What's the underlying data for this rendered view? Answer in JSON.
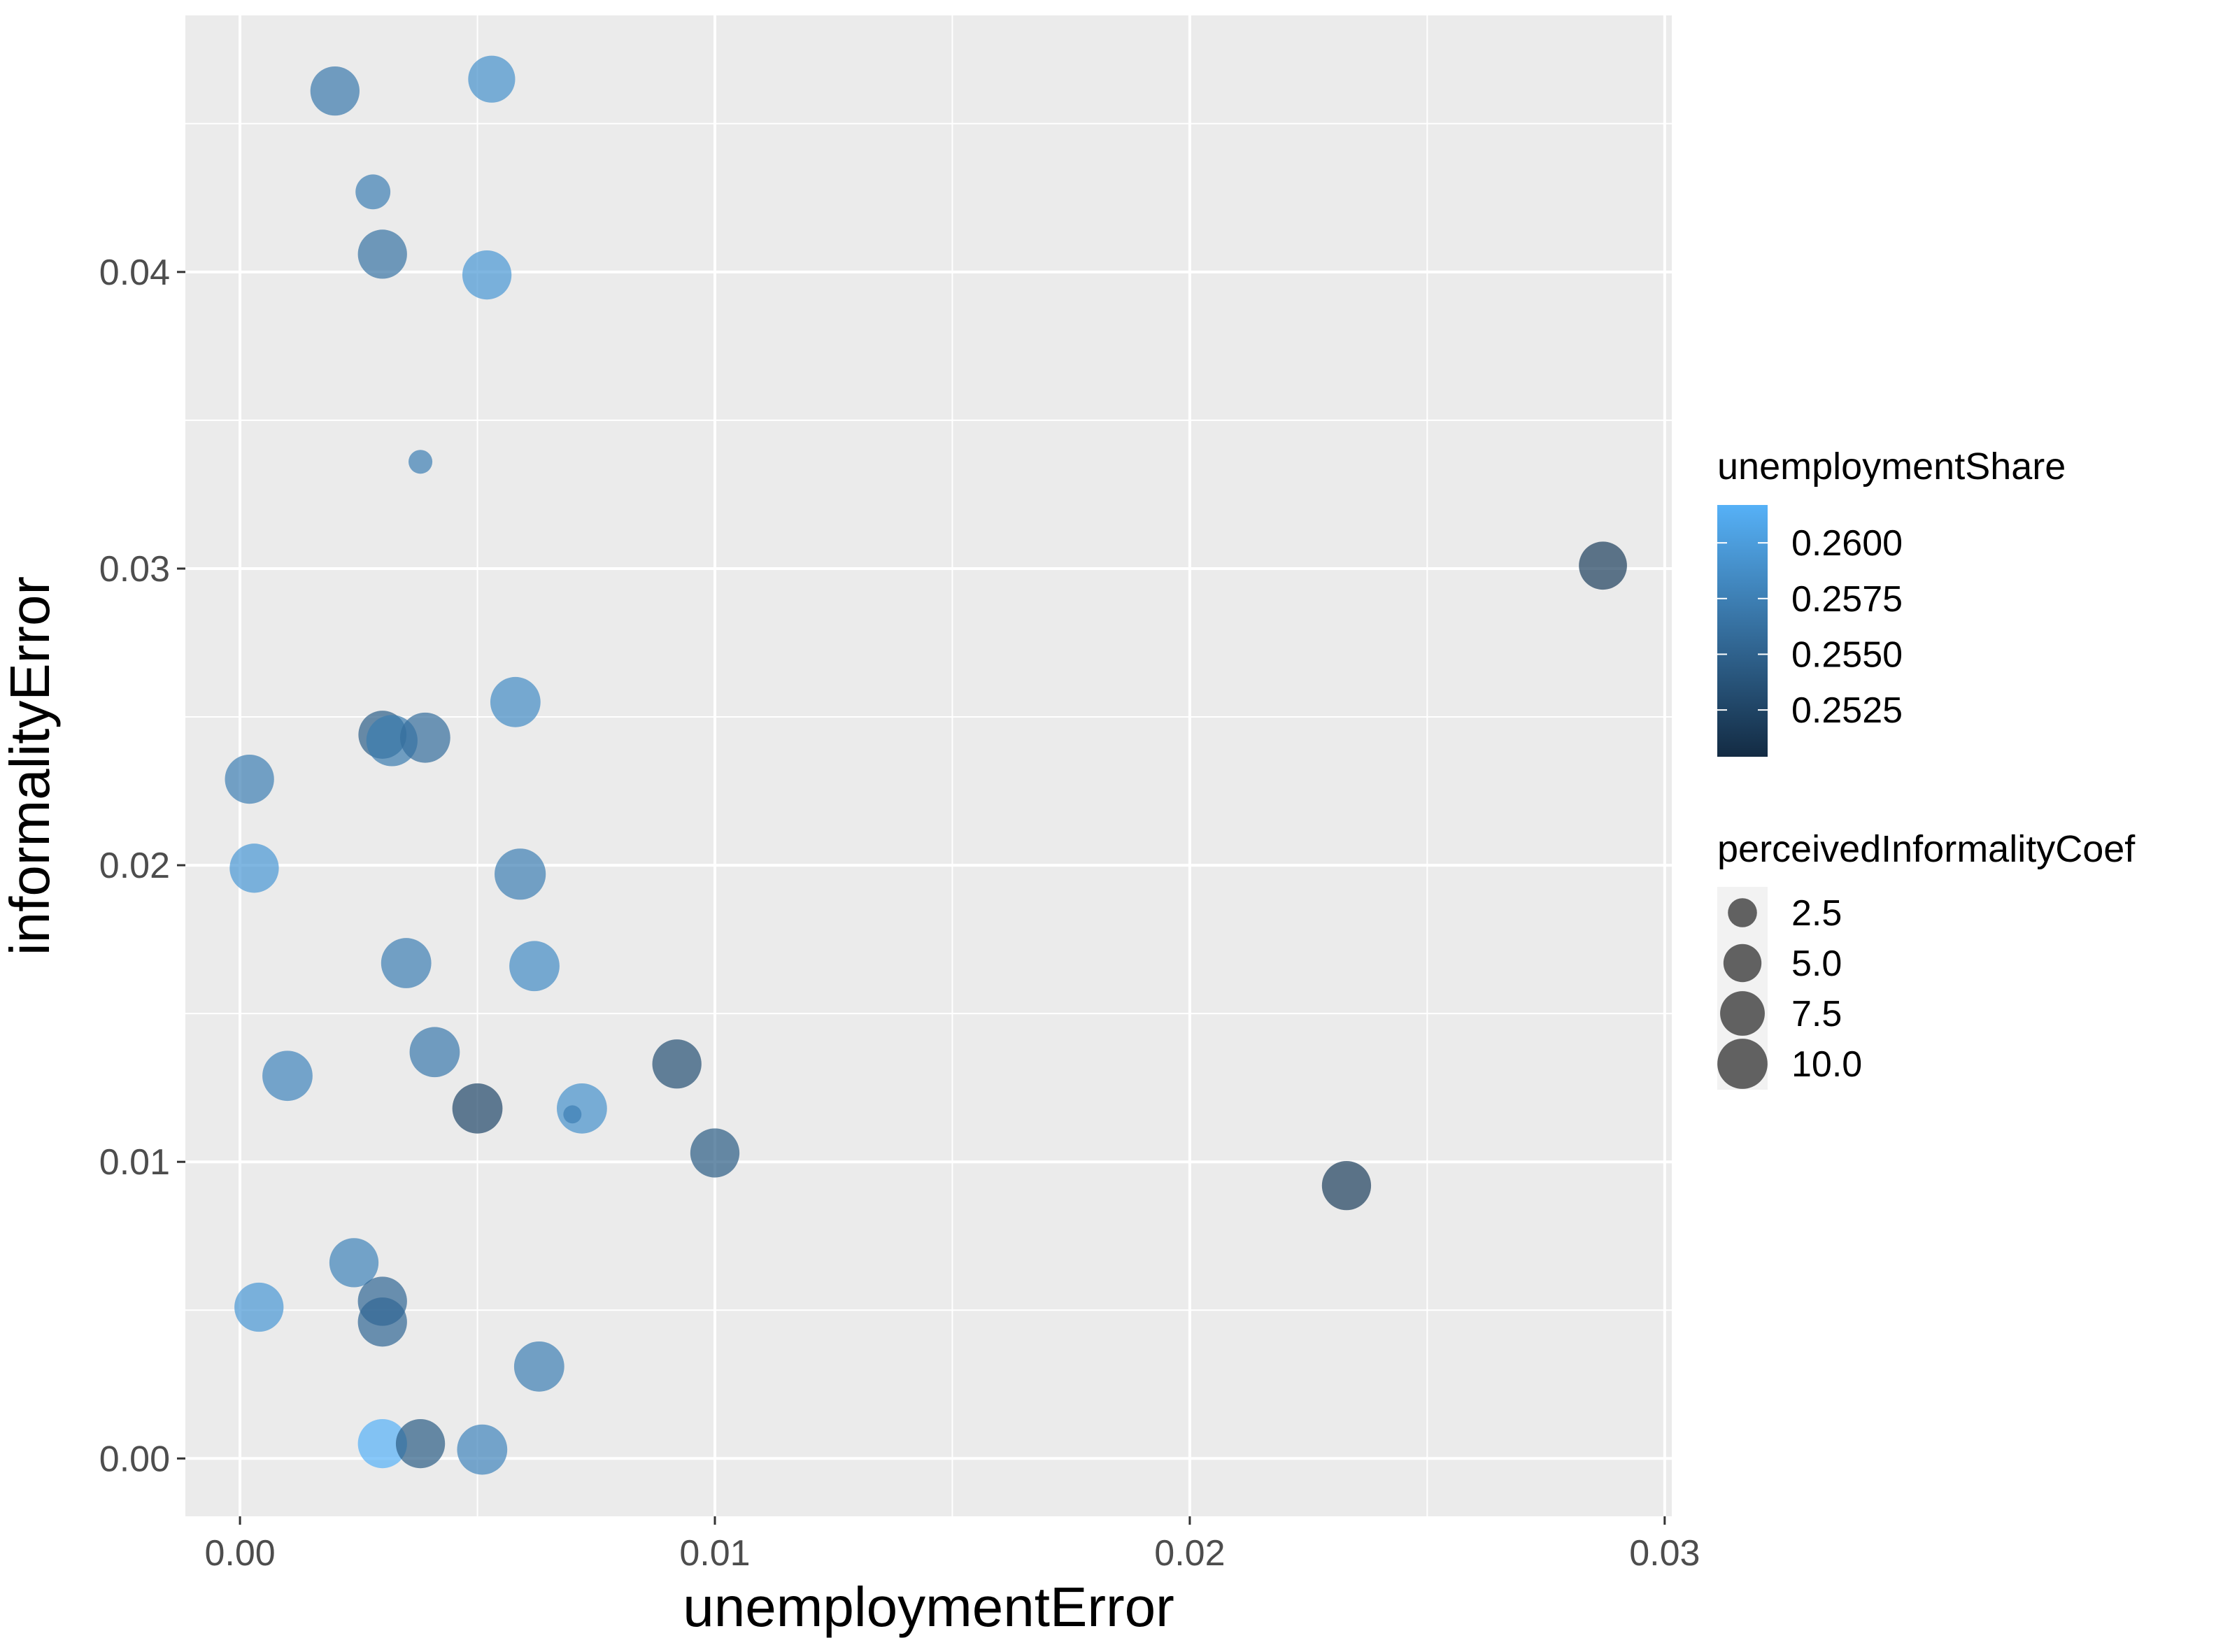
{
  "chart_data": {
    "type": "scatter",
    "xlabel": "unemploymentError",
    "ylabel": "informalityError",
    "xlim": [
      -0.00115,
      0.03015
    ],
    "ylim": [
      -0.00195,
      0.04865
    ],
    "x_ticks": [
      0.0,
      0.01,
      0.02,
      0.03
    ],
    "x_tick_labels": [
      "0.00",
      "0.01",
      "0.02",
      "0.03"
    ],
    "y_ticks": [
      0.0,
      0.01,
      0.02,
      0.03,
      0.04
    ],
    "y_tick_labels": [
      "0.00",
      "0.01",
      "0.02",
      "0.03",
      "0.04"
    ],
    "grid": true,
    "background": "#EBEBEB",
    "point_alpha": 0.7,
    "color_legend": {
      "title": "unemploymentShare",
      "ticks": [
        0.2525,
        0.255,
        0.2575,
        0.26
      ],
      "tick_labels": [
        "0.2525",
        "0.2550",
        "0.2575",
        "0.2600"
      ],
      "range": [
        0.2504,
        0.2617
      ],
      "low_color": "#132B43",
      "high_color": "#56B1F7"
    },
    "size_legend": {
      "title": "perceivedInformalityCoef",
      "values": [
        2.5,
        5.0,
        7.5,
        10.0
      ],
      "labels": [
        "2.5",
        "5.0",
        "7.5",
        "10.0"
      ],
      "range": [
        0.5,
        11.5
      ],
      "color": "#000000"
    },
    "points": [
      {
        "x": 0.002,
        "y": 0.0461,
        "share": 0.257,
        "size": 9.5
      },
      {
        "x": 0.0053,
        "y": 0.0465,
        "share": 0.259,
        "size": 8.5
      },
      {
        "x": 0.0028,
        "y": 0.0427,
        "share": 0.2575,
        "size": 4.0
      },
      {
        "x": 0.003,
        "y": 0.0406,
        "share": 0.2565,
        "size": 9.5
      },
      {
        "x": 0.0052,
        "y": 0.0399,
        "share": 0.2595,
        "size": 9.5
      },
      {
        "x": 0.0038,
        "y": 0.0336,
        "share": 0.2575,
        "size": 1.5
      },
      {
        "x": 0.0287,
        "y": 0.0301,
        "share": 0.252,
        "size": 9.0
      },
      {
        "x": 0.0058,
        "y": 0.0255,
        "share": 0.2585,
        "size": 10.0
      },
      {
        "x": 0.003,
        "y": 0.0244,
        "share": 0.2548,
        "size": 9.0
      },
      {
        "x": 0.0032,
        "y": 0.0242,
        "share": 0.2572,
        "size": 10.5
      },
      {
        "x": 0.0039,
        "y": 0.0243,
        "share": 0.256,
        "size": 10.0
      },
      {
        "x": 0.0002,
        "y": 0.0229,
        "share": 0.2575,
        "size": 9.5
      },
      {
        "x": 0.0003,
        "y": 0.0199,
        "share": 0.2595,
        "size": 9.5
      },
      {
        "x": 0.0059,
        "y": 0.0197,
        "share": 0.2575,
        "size": 10.5
      },
      {
        "x": 0.0035,
        "y": 0.0167,
        "share": 0.2575,
        "size": 10.0
      },
      {
        "x": 0.0062,
        "y": 0.0166,
        "share": 0.2585,
        "size": 10.0
      },
      {
        "x": 0.0041,
        "y": 0.0137,
        "share": 0.257,
        "size": 10.0
      },
      {
        "x": 0.001,
        "y": 0.0129,
        "share": 0.258,
        "size": 10.0
      },
      {
        "x": 0.0092,
        "y": 0.0133,
        "share": 0.2535,
        "size": 9.5
      },
      {
        "x": 0.005,
        "y": 0.0118,
        "share": 0.2528,
        "size": 10.0
      },
      {
        "x": 0.0072,
        "y": 0.0118,
        "share": 0.259,
        "size": 10.0
      },
      {
        "x": 0.007,
        "y": 0.0116,
        "share": 0.2575,
        "size": 0.8
      },
      {
        "x": 0.01,
        "y": 0.0103,
        "share": 0.2545,
        "size": 9.5
      },
      {
        "x": 0.0233,
        "y": 0.0092,
        "share": 0.252,
        "size": 9.5
      },
      {
        "x": 0.0024,
        "y": 0.0066,
        "share": 0.2578,
        "size": 9.5
      },
      {
        "x": 0.0004,
        "y": 0.0051,
        "share": 0.2595,
        "size": 9.5
      },
      {
        "x": 0.003,
        "y": 0.0053,
        "share": 0.2555,
        "size": 9.5
      },
      {
        "x": 0.003,
        "y": 0.0046,
        "share": 0.2555,
        "size": 9.5
      },
      {
        "x": 0.0063,
        "y": 0.0031,
        "share": 0.2575,
        "size": 10.0
      },
      {
        "x": 0.003,
        "y": 0.0005,
        "share": 0.2617,
        "size": 9.5
      },
      {
        "x": 0.0038,
        "y": 0.0005,
        "share": 0.2545,
        "size": 9.5
      },
      {
        "x": 0.0051,
        "y": 0.0003,
        "share": 0.258,
        "size": 10.0
      }
    ]
  }
}
